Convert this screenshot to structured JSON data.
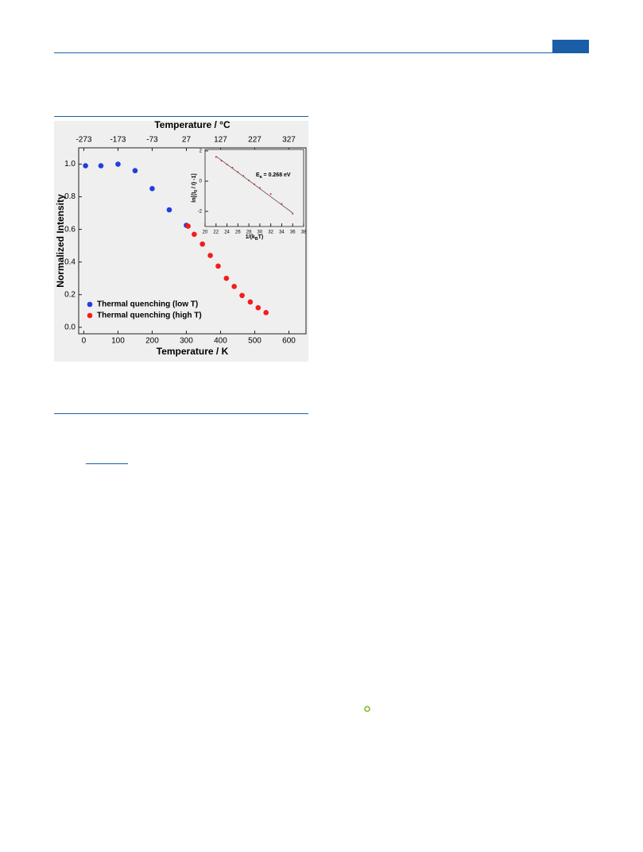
{
  "chart_data": [
    {
      "type": "scatter",
      "x_label": "Temperature / K",
      "y_label": "Normalized Intensity",
      "x2_label": "Temperature / °C",
      "xlim": [
        -15,
        650
      ],
      "xticks": [
        0,
        100,
        200,
        300,
        400,
        500,
        600
      ],
      "x2lim": [
        -288,
        377
      ],
      "x2ticks": [
        -273,
        -173,
        -73,
        27,
        127,
        227,
        327
      ],
      "ylim": [
        -0.04,
        1.1
      ],
      "yticks": [
        {
          "value": 0,
          "label": "0.0"
        },
        {
          "value": 0.2,
          "label": "0.2"
        },
        {
          "value": 0.4,
          "label": "0.4"
        },
        {
          "value": 0.6,
          "label": "0.6"
        },
        {
          "value": 0.8,
          "label": "0.8"
        },
        {
          "value": 1,
          "label": "1.0"
        }
      ],
      "legend": "lower left",
      "series": [
        {
          "name": "Thermal quenching (low T)",
          "color": "#1f3fe0",
          "x": [
            5,
            50,
            100,
            150,
            200,
            250,
            300
          ],
          "values": [
            0.99,
            0.99,
            1.0,
            0.96,
            0.85,
            0.72,
            0.625
          ]
        },
        {
          "name": "Thermal quenching (high T)",
          "color": "#f41c1c",
          "x": [
            305,
            323,
            347,
            370,
            393,
            417,
            440,
            463,
            487,
            510,
            533
          ],
          "values": [
            0.62,
            0.57,
            0.51,
            0.44,
            0.375,
            0.3,
            0.25,
            0.195,
            0.155,
            0.12,
            0.09
          ]
        }
      ]
    },
    {
      "type": "scatter",
      "x_label": [
        "1/(k",
        "B",
        "T)"
      ],
      "y_label": [
        "ln[(I",
        "0",
        " / I) -1]"
      ],
      "annotation": [
        "E",
        "a",
        " = 0.268 eV"
      ],
      "xlim": [
        20,
        38
      ],
      "xticks": [
        20,
        22,
        24,
        26,
        28,
        30,
        32,
        34,
        36,
        38
      ],
      "ylim": [
        -3,
        2.1
      ],
      "yticks": [
        -2,
        0,
        2
      ],
      "series": [
        {
          "color": "#e02020",
          "x": [
            22,
            23,
            24,
            25,
            26,
            27,
            28,
            29,
            30,
            32,
            34,
            36
          ],
          "values": [
            1.6,
            1.35,
            1.1,
            0.9,
            0.6,
            0.35,
            0.05,
            -0.2,
            -0.45,
            -0.85,
            -1.5,
            -2.15
          ]
        }
      ],
      "fit": {
        "color": "#555555",
        "x": [
          22,
          36
        ],
        "values": [
          1.65,
          -2.1
        ]
      }
    }
  ]
}
